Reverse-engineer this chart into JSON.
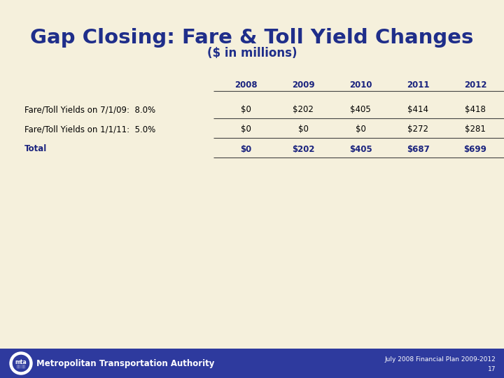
{
  "title": "Gap Closing: Fare & Toll Yield Changes",
  "subtitle": "($ in millions)",
  "bg_color": "#f5f0dc",
  "title_color": "#1f2e8a",
  "subtitle_color": "#1f2e8a",
  "footer_bg_color": "#2e3a9e",
  "footer_text_color": "#ffffff",
  "footer_left": "Metropolitan Transportation Authority",
  "footer_right": "July 2008 Financial Plan 2009-2012",
  "footer_page": "17",
  "table_header_color": "#1a237e",
  "table_text_color": "#000000",
  "table_bold_color": "#1a237e",
  "columns": [
    "2008",
    "2009",
    "2010",
    "2011",
    "2012"
  ],
  "rows": [
    {
      "label": "Fare/Toll Yields on 7/1/09:  8.0%",
      "values": [
        "$0",
        "$202",
        "$405",
        "$414",
        "$418"
      ],
      "bold": false
    },
    {
      "label": "Fare/Toll Yields on 1/1/11:  5.0%",
      "values": [
        "$0",
        "$0",
        "$0",
        "$272",
        "$281"
      ],
      "bold": false
    },
    {
      "label": "Total",
      "values": [
        "$0",
        "$202",
        "$405",
        "$687",
        "$699"
      ],
      "bold": true
    }
  ]
}
